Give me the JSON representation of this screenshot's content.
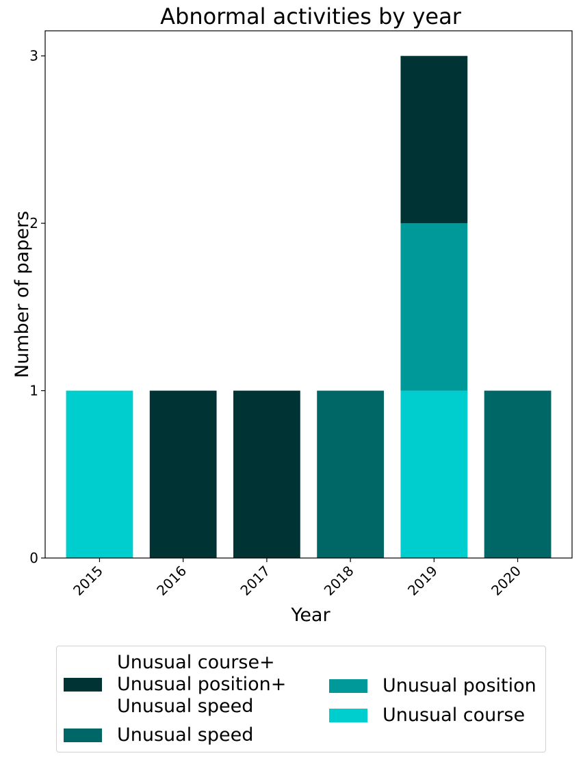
{
  "chart_data": {
    "type": "bar",
    "stacked": true,
    "title": "Abnormal activities by year",
    "xlabel": "Year",
    "ylabel": "Number of papers",
    "categories": [
      "2015",
      "2016",
      "2017",
      "2018",
      "2019",
      "2020"
    ],
    "ylim": [
      0,
      3.15
    ],
    "yticks": [
      0,
      1,
      2,
      3
    ],
    "grid": false,
    "legend_position": "bottom",
    "series": [
      {
        "name": "Unusual course",
        "color": "#00cdcd",
        "values": [
          1,
          0,
          0,
          0,
          1,
          0
        ]
      },
      {
        "name": "Unusual position",
        "color": "#009999",
        "values": [
          0,
          0,
          0,
          0,
          1,
          0
        ]
      },
      {
        "name": "Unusual speed",
        "color": "#006666",
        "values": [
          0,
          0,
          0,
          1,
          0,
          1
        ]
      },
      {
        "name": "Unusual course+\nUnusual position+\nUnusual speed",
        "color": "#003333",
        "values": [
          0,
          1,
          1,
          0,
          1,
          0
        ]
      }
    ],
    "legend_order": [
      3,
      2,
      1,
      0
    ]
  }
}
